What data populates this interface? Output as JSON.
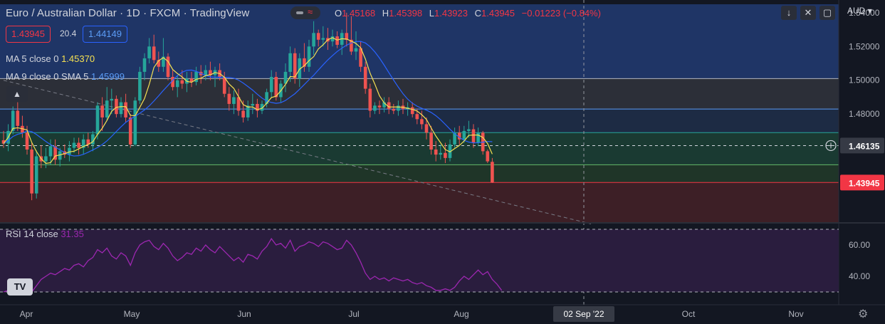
{
  "header": {
    "symbol_title": "Euro / Australian Dollar · 1D · FXCM · TradingView",
    "ohlc": {
      "o_label": "O",
      "o": "1.45168",
      "h_label": "H",
      "h": "1.45398",
      "l_label": "L",
      "l": "1.43923",
      "c_label": "C",
      "c": "1.43945",
      "change": "−0.01223 (−0.84%)"
    },
    "currency": "AUD",
    "bid": "1.43945",
    "spread": "20.4",
    "ask": "1.44149"
  },
  "indicators": {
    "ma5_label": "MA 5 close 0",
    "ma5_value": "1.45370",
    "ma9_label": "MA 9 close 0 SMA 5",
    "ma9_value": "1.45999",
    "rsi_label": "RSI 14 close",
    "rsi_value": "31.35"
  },
  "icons": {
    "collapse": "chevron-up-icon",
    "toolbar": [
      "arrow-down-icon",
      "fullscreen-icon",
      "maximize-icon"
    ],
    "crosshair": "plus-circle-icon",
    "settings": "gear-icon",
    "logo": "tradingview-logo"
  },
  "colors": {
    "up": "#26a69a",
    "down": "#ef5350",
    "ma5": "#f5e052",
    "ma9": "#2962ff",
    "rsi": "#9c27b0",
    "price_tag": "#f23645"
  },
  "chart_data": [
    {
      "type": "candlestick",
      "symbol": "EUR/AUD",
      "interval": "1D",
      "ylim": [
        1.416,
        1.545
      ],
      "price_ticks": [
        "1.54000",
        "1.52000",
        "1.50000",
        "1.48000",
        "1.46000"
      ],
      "x_labels": [
        "Apr",
        "May",
        "Jun",
        "Jul",
        "Aug",
        "02 Sep '22",
        "Oct",
        "Nov"
      ],
      "last_price_label": "1.43945",
      "crosshair_price_label": "1.46135",
      "crosshair_x_label": "02 Sep '22",
      "candles": [
        {
          "o": 1.4645,
          "h": 1.47,
          "l": 1.46,
          "c": 1.4625
        },
        {
          "o": 1.4625,
          "h": 1.474,
          "l": 1.458,
          "c": 1.47
        },
        {
          "o": 1.47,
          "h": 1.4845,
          "l": 1.468,
          "c": 1.482
        },
        {
          "o": 1.482,
          "h": 1.487,
          "l": 1.47,
          "c": 1.473
        },
        {
          "o": 1.473,
          "h": 1.479,
          "l": 1.466,
          "c": 1.469
        },
        {
          "o": 1.469,
          "h": 1.473,
          "l": 1.456,
          "c": 1.459
        },
        {
          "o": 1.459,
          "h": 1.463,
          "l": 1.429,
          "c": 1.433
        },
        {
          "o": 1.433,
          "h": 1.4585,
          "l": 1.43,
          "c": 1.455
        },
        {
          "o": 1.455,
          "h": 1.4615,
          "l": 1.448,
          "c": 1.452
        },
        {
          "o": 1.452,
          "h": 1.46,
          "l": 1.448,
          "c": 1.455
        },
        {
          "o": 1.455,
          "h": 1.465,
          "l": 1.45,
          "c": 1.461
        },
        {
          "o": 1.461,
          "h": 1.465,
          "l": 1.45,
          "c": 1.453
        },
        {
          "o": 1.453,
          "h": 1.46,
          "l": 1.449,
          "c": 1.458
        },
        {
          "o": 1.458,
          "h": 1.462,
          "l": 1.454,
          "c": 1.456
        },
        {
          "o": 1.456,
          "h": 1.464,
          "l": 1.452,
          "c": 1.46
        },
        {
          "o": 1.46,
          "h": 1.466,
          "l": 1.457,
          "c": 1.463
        },
        {
          "o": 1.463,
          "h": 1.466,
          "l": 1.456,
          "c": 1.46
        },
        {
          "o": 1.46,
          "h": 1.468,
          "l": 1.456,
          "c": 1.465
        },
        {
          "o": 1.465,
          "h": 1.469,
          "l": 1.46,
          "c": 1.462
        },
        {
          "o": 1.462,
          "h": 1.47,
          "l": 1.458,
          "c": 1.468
        },
        {
          "o": 1.468,
          "h": 1.487,
          "l": 1.465,
          "c": 1.485
        },
        {
          "o": 1.485,
          "h": 1.49,
          "l": 1.47,
          "c": 1.478
        },
        {
          "o": 1.478,
          "h": 1.496,
          "l": 1.476,
          "c": 1.488
        },
        {
          "o": 1.488,
          "h": 1.495,
          "l": 1.48,
          "c": 1.489
        },
        {
          "o": 1.489,
          "h": 1.491,
          "l": 1.478,
          "c": 1.48
        },
        {
          "o": 1.48,
          "h": 1.49,
          "l": 1.478,
          "c": 1.487
        },
        {
          "o": 1.487,
          "h": 1.492,
          "l": 1.475,
          "c": 1.478
        },
        {
          "o": 1.478,
          "h": 1.48,
          "l": 1.46,
          "c": 1.462
        },
        {
          "o": 1.462,
          "h": 1.49,
          "l": 1.461,
          "c": 1.488
        },
        {
          "o": 1.488,
          "h": 1.508,
          "l": 1.486,
          "c": 1.505
        },
        {
          "o": 1.505,
          "h": 1.516,
          "l": 1.5,
          "c": 1.513
        },
        {
          "o": 1.513,
          "h": 1.525,
          "l": 1.51,
          "c": 1.52
        },
        {
          "o": 1.52,
          "h": 1.527,
          "l": 1.51,
          "c": 1.512
        },
        {
          "o": 1.512,
          "h": 1.517,
          "l": 1.505,
          "c": 1.508
        },
        {
          "o": 1.508,
          "h": 1.525,
          "l": 1.505,
          "c": 1.514
        },
        {
          "o": 1.514,
          "h": 1.516,
          "l": 1.5,
          "c": 1.502
        },
        {
          "o": 1.502,
          "h": 1.506,
          "l": 1.494,
          "c": 1.496
        },
        {
          "o": 1.496,
          "h": 1.503,
          "l": 1.49,
          "c": 1.5
        },
        {
          "o": 1.5,
          "h": 1.506,
          "l": 1.495,
          "c": 1.498
        },
        {
          "o": 1.498,
          "h": 1.505,
          "l": 1.493,
          "c": 1.501
        },
        {
          "o": 1.501,
          "h": 1.505,
          "l": 1.496,
          "c": 1.499
        },
        {
          "o": 1.499,
          "h": 1.508,
          "l": 1.497,
          "c": 1.505
        },
        {
          "o": 1.505,
          "h": 1.509,
          "l": 1.498,
          "c": 1.503
        },
        {
          "o": 1.503,
          "h": 1.509,
          "l": 1.5,
          "c": 1.506
        },
        {
          "o": 1.506,
          "h": 1.511,
          "l": 1.5,
          "c": 1.503
        },
        {
          "o": 1.503,
          "h": 1.508,
          "l": 1.496,
          "c": 1.506
        },
        {
          "o": 1.506,
          "h": 1.51,
          "l": 1.5,
          "c": 1.502
        },
        {
          "o": 1.502,
          "h": 1.505,
          "l": 1.49,
          "c": 1.492
        },
        {
          "o": 1.492,
          "h": 1.496,
          "l": 1.482,
          "c": 1.486
        },
        {
          "o": 1.486,
          "h": 1.494,
          "l": 1.48,
          "c": 1.49
        },
        {
          "o": 1.49,
          "h": 1.495,
          "l": 1.479,
          "c": 1.482
        },
        {
          "o": 1.482,
          "h": 1.488,
          "l": 1.475,
          "c": 1.478
        },
        {
          "o": 1.478,
          "h": 1.488,
          "l": 1.476,
          "c": 1.485
        },
        {
          "o": 1.485,
          "h": 1.492,
          "l": 1.48,
          "c": 1.486
        },
        {
          "o": 1.486,
          "h": 1.489,
          "l": 1.478,
          "c": 1.482
        },
        {
          "o": 1.482,
          "h": 1.488,
          "l": 1.48,
          "c": 1.486
        },
        {
          "o": 1.486,
          "h": 1.495,
          "l": 1.484,
          "c": 1.493
        },
        {
          "o": 1.493,
          "h": 1.506,
          "l": 1.49,
          "c": 1.502
        },
        {
          "o": 1.502,
          "h": 1.505,
          "l": 1.488,
          "c": 1.49
        },
        {
          "o": 1.49,
          "h": 1.5,
          "l": 1.487,
          "c": 1.498
        },
        {
          "o": 1.498,
          "h": 1.51,
          "l": 1.493,
          "c": 1.505
        },
        {
          "o": 1.505,
          "h": 1.52,
          "l": 1.499,
          "c": 1.516
        },
        {
          "o": 1.516,
          "h": 1.519,
          "l": 1.498,
          "c": 1.501
        },
        {
          "o": 1.501,
          "h": 1.516,
          "l": 1.496,
          "c": 1.513
        },
        {
          "o": 1.513,
          "h": 1.522,
          "l": 1.505,
          "c": 1.508
        },
        {
          "o": 1.508,
          "h": 1.524,
          "l": 1.505,
          "c": 1.52
        },
        {
          "o": 1.52,
          "h": 1.535,
          "l": 1.515,
          "c": 1.528
        },
        {
          "o": 1.528,
          "h": 1.53,
          "l": 1.52,
          "c": 1.524
        },
        {
          "o": 1.524,
          "h": 1.532,
          "l": 1.52,
          "c": 1.525
        },
        {
          "o": 1.525,
          "h": 1.531,
          "l": 1.518,
          "c": 1.523
        },
        {
          "o": 1.523,
          "h": 1.53,
          "l": 1.52,
          "c": 1.526
        },
        {
          "o": 1.526,
          "h": 1.529,
          "l": 1.519,
          "c": 1.521
        },
        {
          "o": 1.521,
          "h": 1.53,
          "l": 1.515,
          "c": 1.528
        },
        {
          "o": 1.528,
          "h": 1.54,
          "l": 1.52,
          "c": 1.524
        },
        {
          "o": 1.524,
          "h": 1.538,
          "l": 1.515,
          "c": 1.517
        },
        {
          "o": 1.517,
          "h": 1.529,
          "l": 1.512,
          "c": 1.519
        },
        {
          "o": 1.519,
          "h": 1.523,
          "l": 1.505,
          "c": 1.508
        },
        {
          "o": 1.508,
          "h": 1.511,
          "l": 1.492,
          "c": 1.495
        },
        {
          "o": 1.495,
          "h": 1.498,
          "l": 1.478,
          "c": 1.482
        },
        {
          "o": 1.482,
          "h": 1.487,
          "l": 1.48,
          "c": 1.485
        },
        {
          "o": 1.485,
          "h": 1.488,
          "l": 1.48,
          "c": 1.484
        },
        {
          "o": 1.484,
          "h": 1.49,
          "l": 1.481,
          "c": 1.487
        },
        {
          "o": 1.487,
          "h": 1.49,
          "l": 1.48,
          "c": 1.483
        },
        {
          "o": 1.483,
          "h": 1.486,
          "l": 1.48,
          "c": 1.482
        },
        {
          "o": 1.482,
          "h": 1.488,
          "l": 1.479,
          "c": 1.485
        },
        {
          "o": 1.485,
          "h": 1.489,
          "l": 1.48,
          "c": 1.483
        },
        {
          "o": 1.483,
          "h": 1.487,
          "l": 1.479,
          "c": 1.484
        },
        {
          "o": 1.484,
          "h": 1.487,
          "l": 1.478,
          "c": 1.48
        },
        {
          "o": 1.48,
          "h": 1.483,
          "l": 1.474,
          "c": 1.477
        },
        {
          "o": 1.477,
          "h": 1.482,
          "l": 1.471,
          "c": 1.474
        },
        {
          "o": 1.474,
          "h": 1.478,
          "l": 1.465,
          "c": 1.469
        },
        {
          "o": 1.469,
          "h": 1.473,
          "l": 1.456,
          "c": 1.459
        },
        {
          "o": 1.459,
          "h": 1.464,
          "l": 1.452,
          "c": 1.456
        },
        {
          "o": 1.456,
          "h": 1.462,
          "l": 1.453,
          "c": 1.457
        },
        {
          "o": 1.457,
          "h": 1.463,
          "l": 1.451,
          "c": 1.454
        },
        {
          "o": 1.454,
          "h": 1.465,
          "l": 1.452,
          "c": 1.462
        },
        {
          "o": 1.462,
          "h": 1.472,
          "l": 1.46,
          "c": 1.469
        },
        {
          "o": 1.469,
          "h": 1.473,
          "l": 1.462,
          "c": 1.465
        },
        {
          "o": 1.465,
          "h": 1.473,
          "l": 1.463,
          "c": 1.47
        },
        {
          "o": 1.47,
          "h": 1.476,
          "l": 1.466,
          "c": 1.471
        },
        {
          "o": 1.471,
          "h": 1.474,
          "l": 1.46,
          "c": 1.463
        },
        {
          "o": 1.463,
          "h": 1.472,
          "l": 1.461,
          "c": 1.469
        },
        {
          "o": 1.469,
          "h": 1.47,
          "l": 1.456,
          "c": 1.458
        },
        {
          "o": 1.458,
          "h": 1.459,
          "l": 1.451,
          "c": 1.452
        },
        {
          "o": 1.4517,
          "h": 1.454,
          "l": 1.4392,
          "c": 1.4395
        }
      ],
      "levels": [
        {
          "price": 1.501,
          "color": "#b2b5be"
        },
        {
          "price": 1.483,
          "color": "#5b9cf6"
        },
        {
          "price": 1.469,
          "color": "#26a69a"
        },
        {
          "price": 1.4613,
          "color": "#d1d4dc"
        },
        {
          "price": 1.45,
          "color": "#66bb6a"
        },
        {
          "price": 1.4395,
          "color": "#f23645"
        }
      ],
      "zones": [
        {
          "from": 1.501,
          "to": 1.545,
          "color": "#1f3566"
        },
        {
          "from": 1.483,
          "to": 1.501,
          "color": "#2c2f38"
        },
        {
          "from": 1.469,
          "to": 1.483,
          "color": "#1d2b44"
        },
        {
          "from": 1.45,
          "to": 1.469,
          "color": "#1a3a32"
        },
        {
          "from": 1.4395,
          "to": 1.45,
          "color": "#1f3528"
        },
        {
          "from": 1.416,
          "to": 1.4395,
          "color": "#3d1f26"
        }
      ],
      "trendline": {
        "from": {
          "i": 0,
          "price": 1.5
        },
        "to": {
          "i": 125,
          "price": 1.415
        }
      },
      "ma5": [],
      "ma9": []
    },
    {
      "type": "line",
      "name": "RSI 14 close",
      "ylim": [
        30,
        70
      ],
      "y_ticks": [
        "60.00",
        "40.00"
      ],
      "upper_band": 70,
      "lower_band": 30,
      "values": [
        30,
        31,
        33,
        38,
        37,
        34,
        30,
        34,
        38,
        40,
        42,
        41,
        43,
        45,
        44,
        47,
        48,
        46,
        50,
        52,
        57,
        55,
        58,
        53,
        51,
        55,
        53,
        47,
        55,
        60,
        62,
        63,
        59,
        57,
        61,
        58,
        53,
        50,
        52,
        55,
        54,
        58,
        56,
        60,
        57,
        55,
        59,
        56,
        53,
        50,
        52,
        49,
        54,
        53,
        51,
        56,
        59,
        64,
        60,
        61,
        58,
        63,
        56,
        59,
        60,
        62,
        61,
        59,
        62,
        61,
        59,
        57,
        58,
        63,
        60,
        55,
        49,
        42,
        38,
        40,
        38,
        39,
        37,
        39,
        38,
        37,
        38,
        36,
        35,
        36,
        34,
        33,
        31,
        31,
        32,
        31,
        33,
        37,
        40,
        38,
        41,
        44,
        41,
        43,
        38,
        35,
        31
      ]
    }
  ]
}
